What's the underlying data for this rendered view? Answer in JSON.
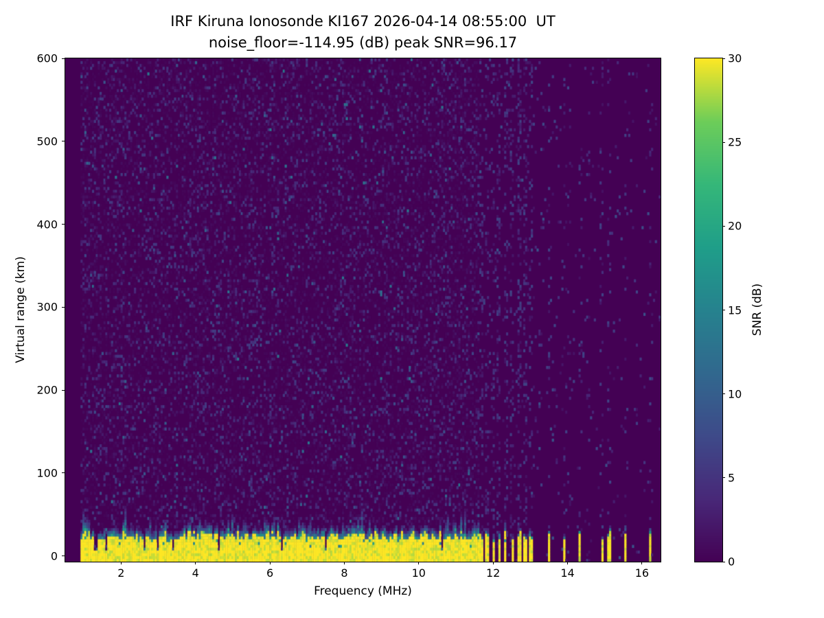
{
  "figure": {
    "background": "#ffffff"
  },
  "chart_data": {
    "type": "heatmap",
    "title_line1": "IRF Kiruna Ionosonde KI167 2026-04-14 08:55:00  UT",
    "title_line2": "noise_floor=-114.95 (dB) peak SNR=96.17",
    "station": "IRF Kiruna Ionosonde KI167",
    "timestamp_ut": "2026-04-14 08:55:00",
    "noise_floor_db": -114.95,
    "peak_snr_db": 96.17,
    "xlabel": "Frequency (MHz)",
    "ylabel": "Virtual range (km)",
    "xlim": [
      0.5,
      16.5
    ],
    "ylim": [
      -7,
      600
    ],
    "xticks": [
      2,
      4,
      6,
      8,
      10,
      12,
      14,
      16
    ],
    "yticks": [
      0,
      100,
      200,
      300,
      400,
      500,
      600
    ],
    "colormap": "viridis",
    "viridis_stops": [
      "#440154",
      "#482878",
      "#3e4a89",
      "#31688e",
      "#26828e",
      "#1f9e89",
      "#35b779",
      "#6dcd59",
      "#fde725"
    ],
    "colorbar": {
      "label": "SNR (dB)",
      "min": 0,
      "max": 30,
      "ticks": [
        0,
        5,
        10,
        15,
        20,
        25,
        30
      ]
    },
    "content": {
      "background_snr_db": 0,
      "speckle_noise_max_db": 8,
      "data_start_mhz": 0.93,
      "ground_echo_band": {
        "continuous_range_mhz": [
          0.93,
          11.62
        ],
        "top_km_mean": 26,
        "top_km_variation": 12,
        "snr_db": 30
      },
      "band_notch_freqs_mhz": [
        1.32,
        1.58,
        2.62,
        2.98,
        3.38,
        4.62,
        6.3,
        7.52,
        10.62
      ],
      "sparse_bar_freqs_mhz": [
        11.68,
        11.84,
        12.0,
        12.16,
        12.33,
        12.52,
        12.7,
        12.86,
        13.02,
        13.5,
        13.92,
        14.33,
        14.92,
        15.12,
        15.55,
        16.22
      ],
      "noisy_streak_freqs_mhz": [
        11.68,
        11.84,
        12.0,
        12.16,
        12.33,
        12.52,
        12.7,
        12.86,
        13.02,
        13.5,
        13.92,
        14.05,
        14.33,
        14.55,
        14.92,
        15.12,
        15.55,
        16.22
      ]
    }
  }
}
